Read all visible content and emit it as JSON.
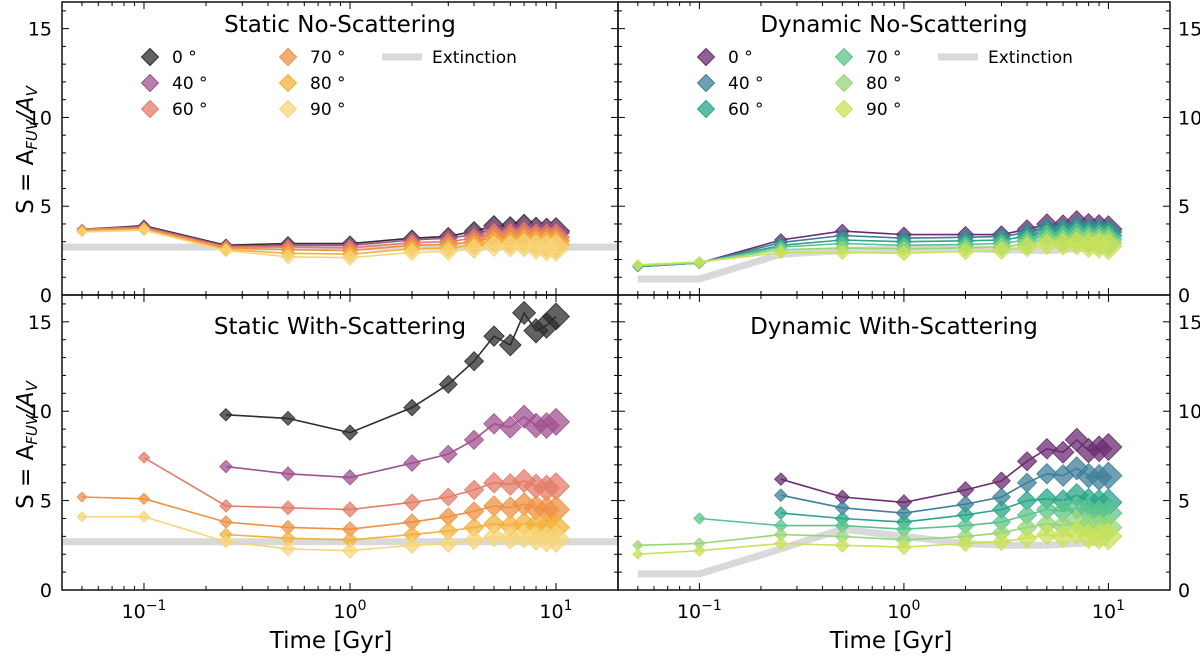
{
  "figure": {
    "xlabel": "Time [Gyr]",
    "ylabel_left": "S = A_FUV/A_V",
    "x_ticks": [
      {
        "value": 0.1,
        "base": "10",
        "exp": "−1"
      },
      {
        "value": 1,
        "base": "10",
        "exp": "0"
      },
      {
        "value": 10,
        "base": "10",
        "exp": "1"
      }
    ],
    "y_ticks": [
      "0",
      "5",
      "10",
      "15"
    ]
  },
  "chart_data": [
    {
      "type": "line",
      "title": "Static No-Scattering",
      "xscale": "log",
      "xlim": [
        0.04,
        20
      ],
      "ylim": [
        0,
        16.5
      ],
      "legend_loc": "top",
      "extinction": {
        "label": "Extinction",
        "x": [
          0.04,
          20
        ],
        "y": [
          2.7,
          2.7
        ]
      },
      "x": [
        0.05,
        0.1,
        0.25,
        0.5,
        1,
        2,
        3,
        4,
        5,
        6,
        7,
        8,
        9,
        10
      ],
      "series": [
        {
          "name": "0 °",
          "color": "#2e2e2e",
          "values": [
            3.7,
            3.9,
            2.8,
            2.9,
            2.9,
            3.2,
            3.3,
            3.6,
            3.9,
            3.8,
            3.9,
            3.7,
            3.6,
            3.6
          ]
        },
        {
          "name": "40 °",
          "color": "#a0528f",
          "values": [
            3.7,
            3.85,
            2.75,
            2.8,
            2.8,
            3.1,
            3.2,
            3.4,
            3.7,
            3.6,
            3.7,
            3.55,
            3.5,
            3.5
          ]
        },
        {
          "name": "60 °",
          "color": "#e47c6a",
          "values": [
            3.7,
            3.8,
            2.7,
            2.7,
            2.65,
            2.95,
            3.0,
            3.2,
            3.45,
            3.4,
            3.45,
            3.3,
            3.25,
            3.25
          ]
        },
        {
          "name": "70 °",
          "color": "#ef9145",
          "values": [
            3.65,
            3.75,
            2.65,
            2.55,
            2.5,
            2.8,
            2.85,
            3.0,
            3.25,
            3.2,
            3.25,
            3.1,
            3.05,
            3.05
          ]
        },
        {
          "name": "80 °",
          "color": "#f4b13c",
          "values": [
            3.6,
            3.7,
            2.55,
            2.35,
            2.3,
            2.6,
            2.65,
            2.8,
            3.0,
            2.95,
            3.0,
            2.9,
            2.85,
            2.85
          ]
        },
        {
          "name": "90 °",
          "color": "#f7d57a",
          "values": [
            3.55,
            3.65,
            2.5,
            2.15,
            2.1,
            2.4,
            2.45,
            2.6,
            2.75,
            2.75,
            2.8,
            2.7,
            2.65,
            2.65
          ]
        }
      ]
    },
    {
      "type": "line",
      "title": "Dynamic No-Scattering",
      "xscale": "log",
      "xlim": [
        0.04,
        20
      ],
      "ylim": [
        0,
        16.5
      ],
      "legend_loc": "top",
      "extinction": {
        "label": "Extinction",
        "x": [
          0.05,
          0.1,
          0.25,
          0.5,
          1,
          2,
          3,
          5,
          7,
          10
        ],
        "y": [
          0.9,
          0.9,
          2.3,
          2.5,
          2.6,
          2.6,
          2.55,
          2.5,
          2.6,
          2.7
        ]
      },
      "x": [
        0.05,
        0.1,
        0.25,
        0.5,
        1,
        2,
        3,
        4,
        5,
        6,
        7,
        8,
        9,
        10
      ],
      "series": [
        {
          "name": "0 °",
          "color": "#6a2c70",
          "values": [
            1.6,
            1.8,
            3.1,
            3.6,
            3.4,
            3.4,
            3.4,
            3.7,
            4.0,
            3.9,
            4.1,
            3.9,
            3.8,
            3.7
          ]
        },
        {
          "name": "40 °",
          "color": "#3f7f9a",
          "values": [
            1.6,
            1.8,
            2.95,
            3.35,
            3.2,
            3.25,
            3.3,
            3.5,
            3.8,
            3.7,
            3.85,
            3.7,
            3.6,
            3.55
          ]
        },
        {
          "name": "60 °",
          "color": "#2aa689",
          "values": [
            1.6,
            1.8,
            2.8,
            3.1,
            3.0,
            3.05,
            3.1,
            3.3,
            3.55,
            3.5,
            3.6,
            3.45,
            3.4,
            3.35
          ]
        },
        {
          "name": "70 °",
          "color": "#5cc48c",
          "values": [
            1.65,
            1.8,
            2.7,
            2.9,
            2.8,
            2.85,
            2.9,
            3.1,
            3.35,
            3.3,
            3.4,
            3.25,
            3.2,
            3.15
          ]
        },
        {
          "name": "80 °",
          "color": "#96d77a",
          "values": [
            1.65,
            1.85,
            2.55,
            2.65,
            2.6,
            2.65,
            2.7,
            2.9,
            3.1,
            3.05,
            3.15,
            3.05,
            3.0,
            2.95
          ]
        },
        {
          "name": "90 °",
          "color": "#c9e25a",
          "values": [
            1.7,
            1.85,
            2.4,
            2.4,
            2.35,
            2.45,
            2.5,
            2.7,
            2.85,
            2.85,
            2.9,
            2.8,
            2.8,
            2.75
          ]
        }
      ]
    },
    {
      "type": "line",
      "title": "Static With-Scattering",
      "xscale": "log",
      "xlim": [
        0.04,
        20
      ],
      "ylim": [
        0,
        16.5
      ],
      "extinction": {
        "label": "Extinction",
        "x": [
          0.04,
          20
        ],
        "y": [
          2.7,
          2.7
        ]
      },
      "x": [
        0.05,
        0.1,
        0.25,
        0.5,
        1,
        2,
        3,
        4,
        5,
        6,
        7,
        8,
        9,
        10
      ],
      "series": [
        {
          "name": "0 °",
          "color": "#2e2e2e",
          "values": [
            null,
            null,
            9.8,
            9.6,
            8.8,
            10.2,
            11.5,
            12.8,
            14.2,
            13.7,
            15.5,
            14.5,
            14.8,
            15.3
          ]
        },
        {
          "name": "40 °",
          "color": "#a0528f",
          "values": [
            null,
            null,
            6.9,
            6.5,
            6.3,
            7.1,
            7.6,
            8.4,
            9.3,
            9.1,
            9.7,
            9.2,
            9.2,
            9.4
          ]
        },
        {
          "name": "60 °",
          "color": "#e47c6a",
          "values": [
            null,
            7.4,
            4.7,
            4.6,
            4.5,
            4.9,
            5.2,
            5.6,
            6.0,
            5.9,
            6.1,
            5.8,
            5.7,
            5.8
          ]
        },
        {
          "name": "70 °",
          "color": "#ef9145",
          "values": [
            5.2,
            5.1,
            3.8,
            3.5,
            3.4,
            3.8,
            4.1,
            4.4,
            4.7,
            4.6,
            4.8,
            4.6,
            4.5,
            4.5
          ]
        },
        {
          "name": "80 °",
          "color": "#f4b13c",
          "values": [
            null,
            null,
            3.1,
            2.9,
            2.8,
            3.1,
            3.3,
            3.5,
            3.7,
            3.6,
            3.7,
            3.6,
            3.5,
            3.5
          ]
        },
        {
          "name": "90 °",
          "color": "#f7d57a",
          "values": [
            4.1,
            4.1,
            2.7,
            2.3,
            2.2,
            2.5,
            2.6,
            2.8,
            3.0,
            2.9,
            3.0,
            2.9,
            2.85,
            2.85
          ]
        }
      ]
    },
    {
      "type": "line",
      "title": "Dynamic With-Scattering",
      "xscale": "log",
      "xlim": [
        0.04,
        20
      ],
      "ylim": [
        0,
        16.5
      ],
      "extinction": {
        "label": "Extinction",
        "x": [
          0.05,
          0.1,
          0.25,
          0.5,
          1,
          2,
          3,
          5,
          7,
          10
        ],
        "y": [
          0.9,
          0.9,
          2.3,
          3.4,
          3.0,
          2.6,
          2.5,
          2.5,
          2.6,
          2.7
        ]
      },
      "x": [
        0.05,
        0.1,
        0.25,
        0.5,
        1,
        2,
        3,
        4,
        5,
        6,
        7,
        8,
        9,
        10
      ],
      "series": [
        {
          "name": "0 °",
          "color": "#6a2c70",
          "values": [
            null,
            null,
            6.2,
            5.2,
            4.9,
            5.6,
            6.1,
            7.2,
            7.9,
            7.7,
            8.4,
            7.8,
            7.9,
            8.0
          ]
        },
        {
          "name": "40 °",
          "color": "#3f7f9a",
          "values": [
            null,
            null,
            5.3,
            4.6,
            4.3,
            4.8,
            5.2,
            6.0,
            6.5,
            6.4,
            6.8,
            6.4,
            6.3,
            6.4
          ]
        },
        {
          "name": "60 °",
          "color": "#2aa689",
          "values": [
            null,
            null,
            4.3,
            4.0,
            3.8,
            4.2,
            4.5,
            5.0,
            5.1,
            5.0,
            5.3,
            5.0,
            4.9,
            4.9
          ]
        },
        {
          "name": "70 °",
          "color": "#5cc48c",
          "values": [
            null,
            4.0,
            3.6,
            3.6,
            3.4,
            3.6,
            3.8,
            4.2,
            4.5,
            4.4,
            4.6,
            4.4,
            4.3,
            4.3
          ]
        },
        {
          "name": "80 °",
          "color": "#96d77a",
          "values": [
            2.5,
            2.6,
            3.1,
            3.0,
            2.8,
            3.0,
            3.2,
            3.5,
            3.7,
            3.6,
            3.8,
            3.6,
            3.5,
            3.5
          ]
        },
        {
          "name": "90 °",
          "color": "#c9e25a",
          "values": [
            2.0,
            2.2,
            2.6,
            2.5,
            2.4,
            2.6,
            2.7,
            2.9,
            3.1,
            3.0,
            3.2,
            3.0,
            3.0,
            3.0
          ]
        }
      ]
    }
  ]
}
